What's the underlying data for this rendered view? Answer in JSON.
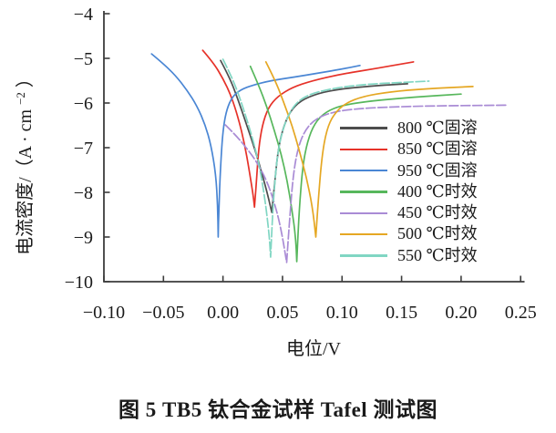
{
  "figure": {
    "caption": "图 5  TB5 钛合金试样 Tafel 测试图"
  },
  "chart_data": {
    "type": "line",
    "title": "",
    "xlabel": "电位/V",
    "ylabel": "电流密度/（A·cm−2）",
    "ylabel_parts": {
      "main": "电流密度/（A · cm",
      "sup": "−2",
      "close": "）"
    },
    "xlim": [
      -0.1,
      0.25
    ],
    "ylim": [
      -10,
      -4
    ],
    "grid": false,
    "legend_position": "right-middle",
    "x_ticks": [
      {
        "v": -0.1,
        "label": "−0.10"
      },
      {
        "v": -0.05,
        "label": "−0.05"
      },
      {
        "v": 0.0,
        "label": "0.00"
      },
      {
        "v": 0.05,
        "label": "0.05"
      },
      {
        "v": 0.1,
        "label": "0.10"
      },
      {
        "v": 0.15,
        "label": "0.15"
      },
      {
        "v": 0.2,
        "label": "0.20"
      },
      {
        "v": 0.25,
        "label": "0.25"
      }
    ],
    "y_ticks": [
      {
        "v": -4,
        "label": "−4"
      },
      {
        "v": -5,
        "label": "−5"
      },
      {
        "v": -6,
        "label": "−6"
      },
      {
        "v": -7,
        "label": "−7"
      },
      {
        "v": -8,
        "label": "−8"
      },
      {
        "v": -9,
        "label": "−9"
      },
      {
        "v": -10,
        "label": "−10"
      }
    ],
    "series": [
      {
        "id": "solution-800",
        "name": "800 ℃固溶",
        "color": "#4d4d4d",
        "dash": "",
        "ecorr_V": 0.041,
        "log_icorr_min": -8.45,
        "points": [
          [
            -0.002,
            -5.05
          ],
          [
            0.006,
            -5.45
          ],
          [
            0.013,
            -5.95
          ],
          [
            0.02,
            -6.5
          ],
          [
            0.027,
            -7.05
          ],
          [
            0.033,
            -7.6
          ],
          [
            0.038,
            -8.1
          ],
          [
            0.041,
            -8.45
          ],
          [
            0.041,
            -8.45
          ],
          [
            0.043,
            -7.9
          ],
          [
            0.046,
            -7.1
          ],
          [
            0.05,
            -6.6
          ],
          [
            0.056,
            -6.2
          ],
          [
            0.065,
            -5.95
          ],
          [
            0.08,
            -5.78
          ],
          [
            0.1,
            -5.68
          ],
          [
            0.13,
            -5.61
          ],
          [
            0.155,
            -5.57
          ]
        ]
      },
      {
        "id": "solution-850",
        "name": "850 ℃固溶",
        "color": "#e63229",
        "dash": "",
        "ecorr_V": 0.027,
        "log_icorr_min": -8.33,
        "points": [
          [
            -0.017,
            -4.82
          ],
          [
            -0.008,
            -5.1
          ],
          [
            0.0,
            -5.45
          ],
          [
            0.007,
            -5.85
          ],
          [
            0.013,
            -6.35
          ],
          [
            0.018,
            -6.9
          ],
          [
            0.022,
            -7.5
          ],
          [
            0.025,
            -8.0
          ],
          [
            0.0265,
            -8.33
          ],
          [
            0.0265,
            -8.33
          ],
          [
            0.028,
            -7.8
          ],
          [
            0.03,
            -7.0
          ],
          [
            0.033,
            -6.5
          ],
          [
            0.038,
            -6.1
          ],
          [
            0.046,
            -5.85
          ],
          [
            0.058,
            -5.65
          ],
          [
            0.075,
            -5.5
          ],
          [
            0.1,
            -5.35
          ],
          [
            0.13,
            -5.22
          ],
          [
            0.16,
            -5.08
          ]
        ]
      },
      {
        "id": "solution-950",
        "name": "950 ℃固溶",
        "color": "#4a86d4",
        "dash": "",
        "ecorr_V": -0.004,
        "log_icorr_min": -9.0,
        "points": [
          [
            -0.06,
            -4.9
          ],
          [
            -0.05,
            -5.12
          ],
          [
            -0.04,
            -5.38
          ],
          [
            -0.03,
            -5.72
          ],
          [
            -0.022,
            -6.06
          ],
          [
            -0.015,
            -6.48
          ],
          [
            -0.01,
            -6.95
          ],
          [
            -0.006,
            -7.6
          ],
          [
            -0.0045,
            -8.3
          ],
          [
            -0.004,
            -9.0
          ],
          [
            -0.004,
            -9.0
          ],
          [
            -0.0035,
            -8.4
          ],
          [
            -0.002,
            -7.4
          ],
          [
            0.0,
            -6.6
          ],
          [
            0.003,
            -6.15
          ],
          [
            0.008,
            -5.85
          ],
          [
            0.015,
            -5.7
          ],
          [
            0.025,
            -5.6
          ],
          [
            0.04,
            -5.5
          ],
          [
            0.06,
            -5.42
          ],
          [
            0.08,
            -5.33
          ],
          [
            0.1,
            -5.24
          ],
          [
            0.115,
            -5.16
          ]
        ]
      },
      {
        "id": "aging-400",
        "name": "400 ℃时效",
        "color": "#57b75c",
        "dash": "",
        "ecorr_V": 0.062,
        "log_icorr_min": -9.55,
        "points": [
          [
            0.023,
            -5.18
          ],
          [
            0.03,
            -5.6
          ],
          [
            0.037,
            -6.1
          ],
          [
            0.043,
            -6.6
          ],
          [
            0.049,
            -7.15
          ],
          [
            0.054,
            -7.75
          ],
          [
            0.058,
            -8.4
          ],
          [
            0.061,
            -9.0
          ],
          [
            0.062,
            -9.55
          ],
          [
            0.062,
            -9.55
          ],
          [
            0.064,
            -8.4
          ],
          [
            0.067,
            -7.4
          ],
          [
            0.071,
            -6.85
          ],
          [
            0.077,
            -6.45
          ],
          [
            0.086,
            -6.2
          ],
          [
            0.1,
            -6.05
          ],
          [
            0.125,
            -5.95
          ],
          [
            0.16,
            -5.87
          ],
          [
            0.2,
            -5.8
          ]
        ]
      },
      {
        "id": "aging-450",
        "name": "450 ℃时效",
        "color": "#a98bd5",
        "dash": "10 3",
        "ecorr_V": 0.054,
        "log_icorr_min": -9.57,
        "points": [
          [
            0.002,
            -6.49
          ],
          [
            0.01,
            -6.7
          ],
          [
            0.019,
            -6.98
          ],
          [
            0.028,
            -7.3
          ],
          [
            0.037,
            -7.75
          ],
          [
            0.044,
            -8.3
          ],
          [
            0.049,
            -8.85
          ],
          [
            0.0535,
            -9.57
          ],
          [
            0.0535,
            -9.57
          ],
          [
            0.056,
            -8.6
          ],
          [
            0.059,
            -7.6
          ],
          [
            0.063,
            -7.0
          ],
          [
            0.069,
            -6.6
          ],
          [
            0.078,
            -6.35
          ],
          [
            0.092,
            -6.2
          ],
          [
            0.115,
            -6.12
          ],
          [
            0.15,
            -6.08
          ],
          [
            0.19,
            -6.06
          ],
          [
            0.2375,
            -6.05
          ]
        ]
      },
      {
        "id": "aging-500",
        "name": "500 ℃时效",
        "color": "#e5a723",
        "dash": "",
        "ecorr_V": 0.078,
        "log_icorr_min": -9.0,
        "points": [
          [
            0.036,
            -5.08
          ],
          [
            0.044,
            -5.5
          ],
          [
            0.051,
            -5.98
          ],
          [
            0.058,
            -6.5
          ],
          [
            0.064,
            -7.05
          ],
          [
            0.07,
            -7.65
          ],
          [
            0.075,
            -8.3
          ],
          [
            0.078,
            -9.0
          ],
          [
            0.078,
            -9.0
          ],
          [
            0.08,
            -8.2
          ],
          [
            0.083,
            -7.2
          ],
          [
            0.087,
            -6.6
          ],
          [
            0.093,
            -6.25
          ],
          [
            0.103,
            -6.0
          ],
          [
            0.118,
            -5.85
          ],
          [
            0.14,
            -5.75
          ],
          [
            0.17,
            -5.68
          ],
          [
            0.21,
            -5.63
          ]
        ]
      },
      {
        "id": "aging-550",
        "name": "550 ℃时效",
        "color": "#80d6c3",
        "dash": "10 3",
        "ecorr_V": 0.04,
        "log_icorr_min": -9.45,
        "points": [
          [
            0.0,
            -5.02
          ],
          [
            0.008,
            -5.45
          ],
          [
            0.015,
            -5.95
          ],
          [
            0.021,
            -6.45
          ],
          [
            0.027,
            -7.0
          ],
          [
            0.032,
            -7.6
          ],
          [
            0.036,
            -8.3
          ],
          [
            0.039,
            -9.0
          ],
          [
            0.04,
            -9.45
          ],
          [
            0.04,
            -9.45
          ],
          [
            0.042,
            -8.3
          ],
          [
            0.045,
            -7.3
          ],
          [
            0.049,
            -6.7
          ],
          [
            0.055,
            -6.25
          ],
          [
            0.063,
            -5.95
          ],
          [
            0.075,
            -5.78
          ],
          [
            0.095,
            -5.66
          ],
          [
            0.12,
            -5.58
          ],
          [
            0.15,
            -5.54
          ],
          [
            0.173,
            -5.51
          ]
        ]
      }
    ]
  }
}
